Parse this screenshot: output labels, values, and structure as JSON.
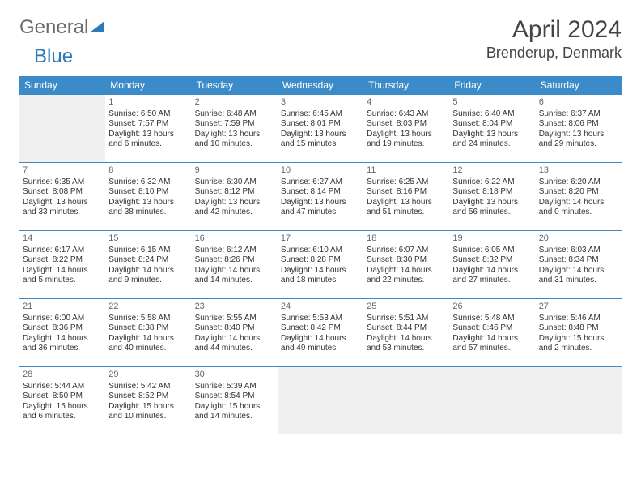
{
  "brand": {
    "part1": "General",
    "part2": "Blue"
  },
  "title": {
    "month": "April 2024",
    "location": "Brenderup, Denmark"
  },
  "colors": {
    "header_bg": "#3b8bc8",
    "border": "#3b8bc8",
    "empty_bg": "#f0f0f0",
    "text": "#333333",
    "title_text": "#444444",
    "logo_gray": "#6b6b6b",
    "logo_blue": "#2a7ab9",
    "background": "#ffffff"
  },
  "typography": {
    "body_fontsize": 10,
    "daynum_fontsize": 11,
    "header_fontsize": 12,
    "title_fontsize": 30,
    "location_fontsize": 18
  },
  "weekdays": [
    "Sunday",
    "Monday",
    "Tuesday",
    "Wednesday",
    "Thursday",
    "Friday",
    "Saturday"
  ],
  "weeks": [
    [
      {
        "empty": true
      },
      {
        "day": "1",
        "sunrise": "Sunrise: 6:50 AM",
        "sunset": "Sunset: 7:57 PM",
        "daylight1": "Daylight: 13 hours",
        "daylight2": "and 6 minutes."
      },
      {
        "day": "2",
        "sunrise": "Sunrise: 6:48 AM",
        "sunset": "Sunset: 7:59 PM",
        "daylight1": "Daylight: 13 hours",
        "daylight2": "and 10 minutes."
      },
      {
        "day": "3",
        "sunrise": "Sunrise: 6:45 AM",
        "sunset": "Sunset: 8:01 PM",
        "daylight1": "Daylight: 13 hours",
        "daylight2": "and 15 minutes."
      },
      {
        "day": "4",
        "sunrise": "Sunrise: 6:43 AM",
        "sunset": "Sunset: 8:03 PM",
        "daylight1": "Daylight: 13 hours",
        "daylight2": "and 19 minutes."
      },
      {
        "day": "5",
        "sunrise": "Sunrise: 6:40 AM",
        "sunset": "Sunset: 8:04 PM",
        "daylight1": "Daylight: 13 hours",
        "daylight2": "and 24 minutes."
      },
      {
        "day": "6",
        "sunrise": "Sunrise: 6:37 AM",
        "sunset": "Sunset: 8:06 PM",
        "daylight1": "Daylight: 13 hours",
        "daylight2": "and 29 minutes."
      }
    ],
    [
      {
        "day": "7",
        "sunrise": "Sunrise: 6:35 AM",
        "sunset": "Sunset: 8:08 PM",
        "daylight1": "Daylight: 13 hours",
        "daylight2": "and 33 minutes."
      },
      {
        "day": "8",
        "sunrise": "Sunrise: 6:32 AM",
        "sunset": "Sunset: 8:10 PM",
        "daylight1": "Daylight: 13 hours",
        "daylight2": "and 38 minutes."
      },
      {
        "day": "9",
        "sunrise": "Sunrise: 6:30 AM",
        "sunset": "Sunset: 8:12 PM",
        "daylight1": "Daylight: 13 hours",
        "daylight2": "and 42 minutes."
      },
      {
        "day": "10",
        "sunrise": "Sunrise: 6:27 AM",
        "sunset": "Sunset: 8:14 PM",
        "daylight1": "Daylight: 13 hours",
        "daylight2": "and 47 minutes."
      },
      {
        "day": "11",
        "sunrise": "Sunrise: 6:25 AM",
        "sunset": "Sunset: 8:16 PM",
        "daylight1": "Daylight: 13 hours",
        "daylight2": "and 51 minutes."
      },
      {
        "day": "12",
        "sunrise": "Sunrise: 6:22 AM",
        "sunset": "Sunset: 8:18 PM",
        "daylight1": "Daylight: 13 hours",
        "daylight2": "and 56 minutes."
      },
      {
        "day": "13",
        "sunrise": "Sunrise: 6:20 AM",
        "sunset": "Sunset: 8:20 PM",
        "daylight1": "Daylight: 14 hours",
        "daylight2": "and 0 minutes."
      }
    ],
    [
      {
        "day": "14",
        "sunrise": "Sunrise: 6:17 AM",
        "sunset": "Sunset: 8:22 PM",
        "daylight1": "Daylight: 14 hours",
        "daylight2": "and 5 minutes."
      },
      {
        "day": "15",
        "sunrise": "Sunrise: 6:15 AM",
        "sunset": "Sunset: 8:24 PM",
        "daylight1": "Daylight: 14 hours",
        "daylight2": "and 9 minutes."
      },
      {
        "day": "16",
        "sunrise": "Sunrise: 6:12 AM",
        "sunset": "Sunset: 8:26 PM",
        "daylight1": "Daylight: 14 hours",
        "daylight2": "and 14 minutes."
      },
      {
        "day": "17",
        "sunrise": "Sunrise: 6:10 AM",
        "sunset": "Sunset: 8:28 PM",
        "daylight1": "Daylight: 14 hours",
        "daylight2": "and 18 minutes."
      },
      {
        "day": "18",
        "sunrise": "Sunrise: 6:07 AM",
        "sunset": "Sunset: 8:30 PM",
        "daylight1": "Daylight: 14 hours",
        "daylight2": "and 22 minutes."
      },
      {
        "day": "19",
        "sunrise": "Sunrise: 6:05 AM",
        "sunset": "Sunset: 8:32 PM",
        "daylight1": "Daylight: 14 hours",
        "daylight2": "and 27 minutes."
      },
      {
        "day": "20",
        "sunrise": "Sunrise: 6:03 AM",
        "sunset": "Sunset: 8:34 PM",
        "daylight1": "Daylight: 14 hours",
        "daylight2": "and 31 minutes."
      }
    ],
    [
      {
        "day": "21",
        "sunrise": "Sunrise: 6:00 AM",
        "sunset": "Sunset: 8:36 PM",
        "daylight1": "Daylight: 14 hours",
        "daylight2": "and 36 minutes."
      },
      {
        "day": "22",
        "sunrise": "Sunrise: 5:58 AM",
        "sunset": "Sunset: 8:38 PM",
        "daylight1": "Daylight: 14 hours",
        "daylight2": "and 40 minutes."
      },
      {
        "day": "23",
        "sunrise": "Sunrise: 5:55 AM",
        "sunset": "Sunset: 8:40 PM",
        "daylight1": "Daylight: 14 hours",
        "daylight2": "and 44 minutes."
      },
      {
        "day": "24",
        "sunrise": "Sunrise: 5:53 AM",
        "sunset": "Sunset: 8:42 PM",
        "daylight1": "Daylight: 14 hours",
        "daylight2": "and 49 minutes."
      },
      {
        "day": "25",
        "sunrise": "Sunrise: 5:51 AM",
        "sunset": "Sunset: 8:44 PM",
        "daylight1": "Daylight: 14 hours",
        "daylight2": "and 53 minutes."
      },
      {
        "day": "26",
        "sunrise": "Sunrise: 5:48 AM",
        "sunset": "Sunset: 8:46 PM",
        "daylight1": "Daylight: 14 hours",
        "daylight2": "and 57 minutes."
      },
      {
        "day": "27",
        "sunrise": "Sunrise: 5:46 AM",
        "sunset": "Sunset: 8:48 PM",
        "daylight1": "Daylight: 15 hours",
        "daylight2": "and 2 minutes."
      }
    ],
    [
      {
        "day": "28",
        "sunrise": "Sunrise: 5:44 AM",
        "sunset": "Sunset: 8:50 PM",
        "daylight1": "Daylight: 15 hours",
        "daylight2": "and 6 minutes."
      },
      {
        "day": "29",
        "sunrise": "Sunrise: 5:42 AM",
        "sunset": "Sunset: 8:52 PM",
        "daylight1": "Daylight: 15 hours",
        "daylight2": "and 10 minutes."
      },
      {
        "day": "30",
        "sunrise": "Sunrise: 5:39 AM",
        "sunset": "Sunset: 8:54 PM",
        "daylight1": "Daylight: 15 hours",
        "daylight2": "and 14 minutes."
      },
      {
        "empty": true
      },
      {
        "empty": true
      },
      {
        "empty": true
      },
      {
        "empty": true
      }
    ]
  ]
}
